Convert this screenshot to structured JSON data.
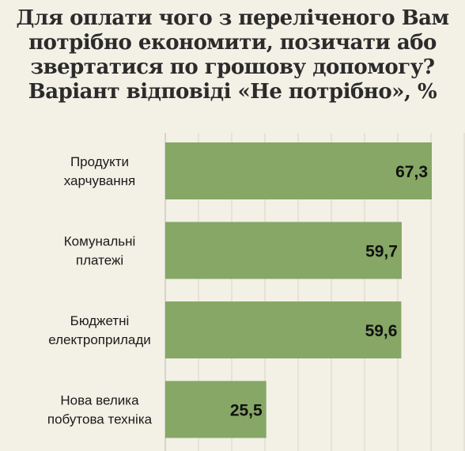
{
  "header": {
    "title_lines": [
      "Для оплати чого з переліченого Вам",
      "потрібно економити, позичати або",
      "звертатися по грошову допомогу?",
      "Варіант відповіді «Не потрібно», %"
    ]
  },
  "colors": {
    "background": "#f3f0e6",
    "bar": "#86a765",
    "grid": "#d9d4c6"
  },
  "chart_data": {
    "type": "bar",
    "orientation": "horizontal",
    "title": "Для оплати чого з переліченого Вам потрібно економити, позичати або звертатися по грошову допомогу? Варіант відповіді «Не потрібно», %",
    "categories": [
      [
        "Продукти",
        "харчування"
      ],
      [
        "Комунальні",
        "платежі"
      ],
      [
        "Бюджетні",
        "електроприлади"
      ],
      [
        "Нова велика",
        "побутова техніка"
      ]
    ],
    "values": [
      67.3,
      59.7,
      59.6,
      25.5
    ],
    "value_labels": [
      "67,3",
      "59,7",
      "59,6",
      "25,5"
    ],
    "xlim": [
      0,
      67.3
    ],
    "grid": true,
    "xlabel": "",
    "ylabel": ""
  }
}
